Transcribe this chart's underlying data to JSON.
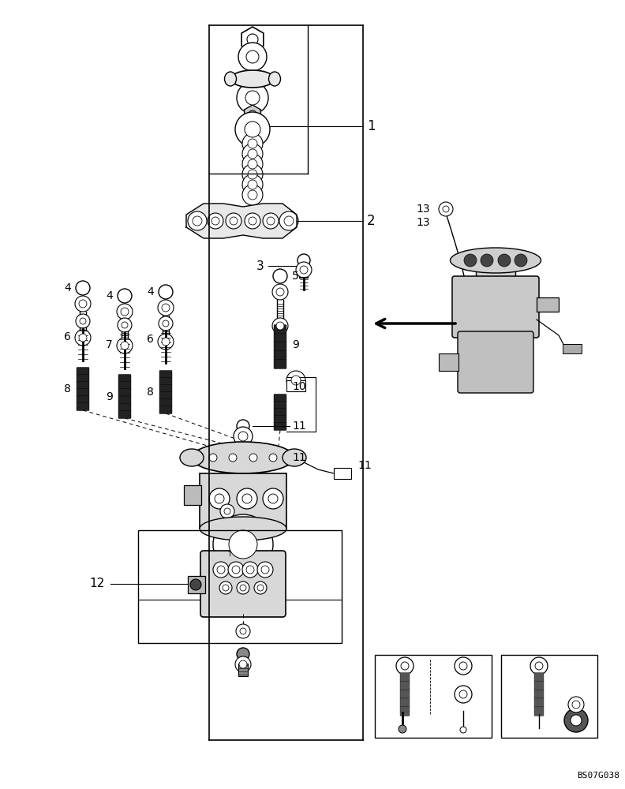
{
  "bg": "#ffffff",
  "lc": "#000000",
  "tc": "#000000",
  "watermark": "BS07G038",
  "fig_w": 7.92,
  "fig_h": 10.0,
  "dpi": 100
}
